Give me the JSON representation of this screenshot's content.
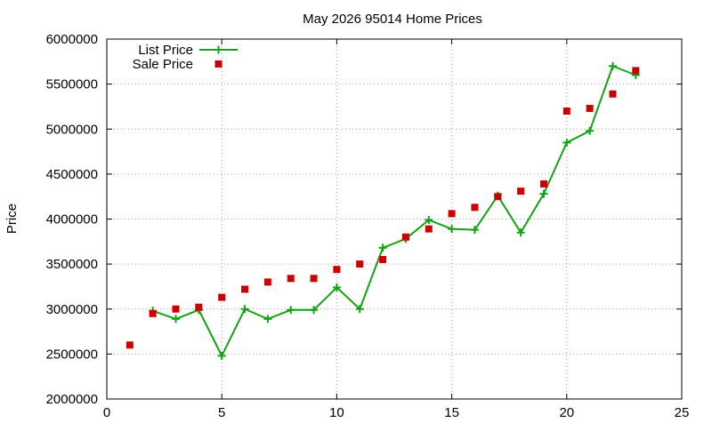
{
  "chart_data": {
    "type": "line",
    "title": "May 2026 95014 Home Prices",
    "xlabel": "",
    "ylabel": "Price",
    "xlim": [
      0,
      25
    ],
    "ylim": [
      2000000,
      6000000
    ],
    "x_ticks": [
      0,
      5,
      10,
      15,
      20,
      25
    ],
    "y_ticks": [
      2000000,
      2500000,
      3000000,
      3500000,
      4000000,
      4500000,
      5000000,
      5500000,
      6000000
    ],
    "grid": true,
    "legend_position": "top-left",
    "series": [
      {
        "name": "List Price",
        "style": "line+plus",
        "color": "#11a311",
        "x": [
          2,
          3,
          4,
          5,
          6,
          7,
          8,
          9,
          10,
          11,
          12,
          13,
          14,
          15,
          16,
          17,
          18,
          19,
          20,
          21,
          22,
          23
        ],
        "y": [
          2980000,
          2890000,
          2990000,
          2480000,
          3000000,
          2890000,
          2990000,
          2990000,
          3240000,
          3000000,
          3680000,
          3780000,
          3990000,
          3890000,
          3880000,
          4260000,
          3850000,
          4280000,
          4850000,
          4980000,
          5700000,
          5600000
        ]
      },
      {
        "name": "Sale Price",
        "style": "square-points",
        "color": "#cc0000",
        "x": [
          1,
          2,
          3,
          4,
          5,
          6,
          7,
          8,
          9,
          10,
          11,
          12,
          13,
          14,
          15,
          16,
          17,
          18,
          19,
          20,
          21,
          22,
          23
        ],
        "y": [
          2600000,
          2950000,
          3000000,
          3020000,
          3130000,
          3220000,
          3300000,
          3340000,
          3340000,
          3440000,
          3500000,
          3550000,
          3800000,
          3890000,
          4060000,
          4130000,
          4250000,
          4310000,
          4390000,
          5200000,
          5230000,
          5390000,
          5650000
        ]
      }
    ]
  }
}
